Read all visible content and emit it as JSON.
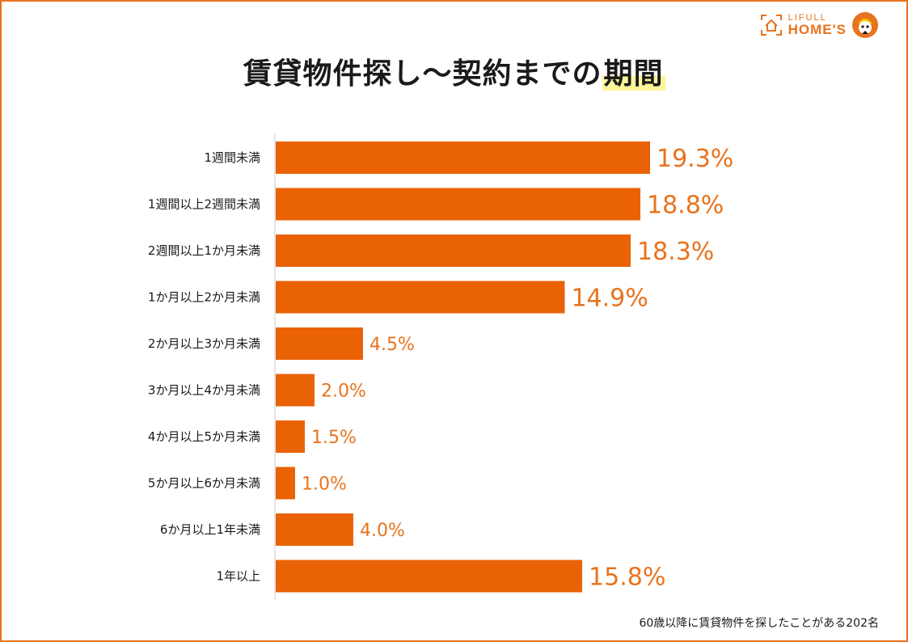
{
  "brand": {
    "small": "LIFULL",
    "name": "HOME'S"
  },
  "title": {
    "main": "賃貸物件探し〜契約までの",
    "highlight": "期間"
  },
  "footnote": "60歳以降に賃貸物件を探したことがある202名",
  "colors": {
    "bar": "#EA6206",
    "label": "#E8731E",
    "text": "#1a1a1a",
    "axis": "#cccccc",
    "highlight": "#FDF59A"
  },
  "chart_data": {
    "type": "bar",
    "orientation": "horizontal",
    "title": "賃貸物件探し〜契約までの期間",
    "categories": [
      "1週間未満",
      "1週間以上2週間未満",
      "2週間以上1か月未満",
      "1か月以上2か月未満",
      "2か月以上3か月未満",
      "3か月以上4か月未満",
      "4か月以上5か月未満",
      "5か月以上6か月未満",
      "6か月以上1年未満",
      "1年以上"
    ],
    "values": [
      19.3,
      18.8,
      18.3,
      14.9,
      4.5,
      2.0,
      1.5,
      1.0,
      4.0,
      15.8
    ],
    "value_labels": [
      "19.3%",
      "18.8%",
      "18.3%",
      "14.9%",
      "4.5%",
      "2.0%",
      "1.5%",
      "1.0%",
      "4.0%",
      "15.8%"
    ],
    "unit": "%",
    "xlim": [
      0,
      20
    ],
    "grid": false,
    "legend": "none"
  }
}
